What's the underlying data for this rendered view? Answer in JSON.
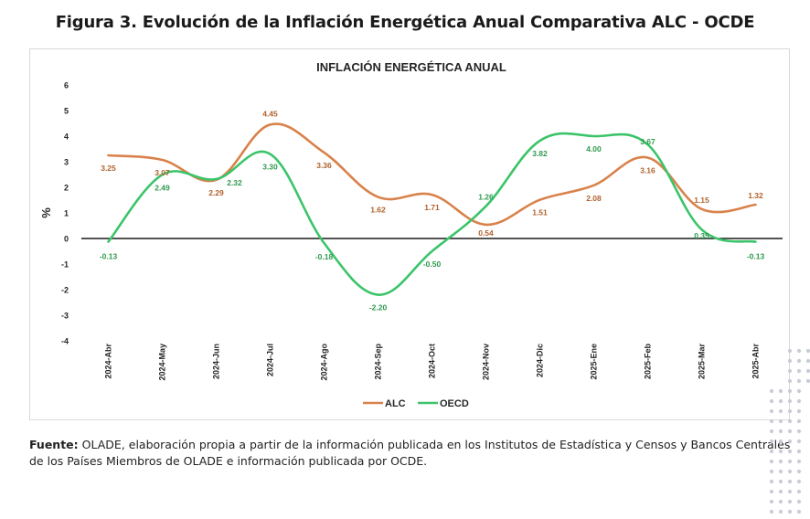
{
  "figure_title": "Figura 3. Evolución de la Inflación Energética Anual Comparativa ALC - OCDE",
  "source": {
    "label": "Fuente:",
    "text": "OLADE, elaboración propia a partir de la información publicada en los Institutos de Estadística y Censos y Bancos Centrales de los Países Miembros de OLADE e información publicada por OCDE."
  },
  "colors": {
    "ALC": "#d9824b",
    "OECD": "#3cc46a",
    "ALC_label": "#b0622c",
    "OECD_label": "#2f9a4e",
    "axis": "#1a1a1a",
    "decor_dots": "#c9ccd6"
  },
  "chart_data": {
    "type": "line",
    "title": "INFLACIÓN ENERGÉTICA ANUAL",
    "xlabel": "",
    "ylabel": "%",
    "ylim": [
      -4,
      6
    ],
    "yticks": [
      6,
      5,
      4,
      3,
      2,
      1,
      0,
      -1,
      -2,
      -3,
      -4
    ],
    "grid": false,
    "legend_position": "bottom",
    "categories": [
      "2024-Abr",
      "2024-May",
      "2024-Jun",
      "2024-Jul",
      "2024-Ago",
      "2024-Sep",
      "2024-Oct",
      "2024-Nov",
      "2024-Dic",
      "2025-Ene",
      "2025-Feb",
      "2025-Mar",
      "2025-Abr"
    ],
    "series": [
      {
        "name": "ALC",
        "values": [
          3.25,
          3.07,
          2.29,
          4.45,
          3.36,
          1.62,
          1.71,
          0.54,
          1.51,
          2.08,
          3.16,
          1.15,
          1.32
        ],
        "labels": [
          "3.25",
          "3.07",
          "2.29",
          "4.45",
          "3.36",
          "1.62",
          "1.71",
          "0.54",
          "1.51",
          "2.08",
          "3.16",
          "1.15",
          "1.32"
        ]
      },
      {
        "name": "OECD",
        "values": [
          -0.13,
          2.49,
          2.32,
          3.3,
          -0.18,
          -2.2,
          -0.5,
          1.26,
          3.82,
          4.0,
          3.67,
          0.35,
          -0.13
        ],
        "labels": [
          "-0.13",
          "2.49",
          "2.32",
          "3.30",
          "-0.18",
          "-2.20",
          "-0.50",
          "1.26",
          "3.82",
          "4.00",
          "3.67",
          "0.35",
          "-0.13"
        ]
      }
    ]
  }
}
